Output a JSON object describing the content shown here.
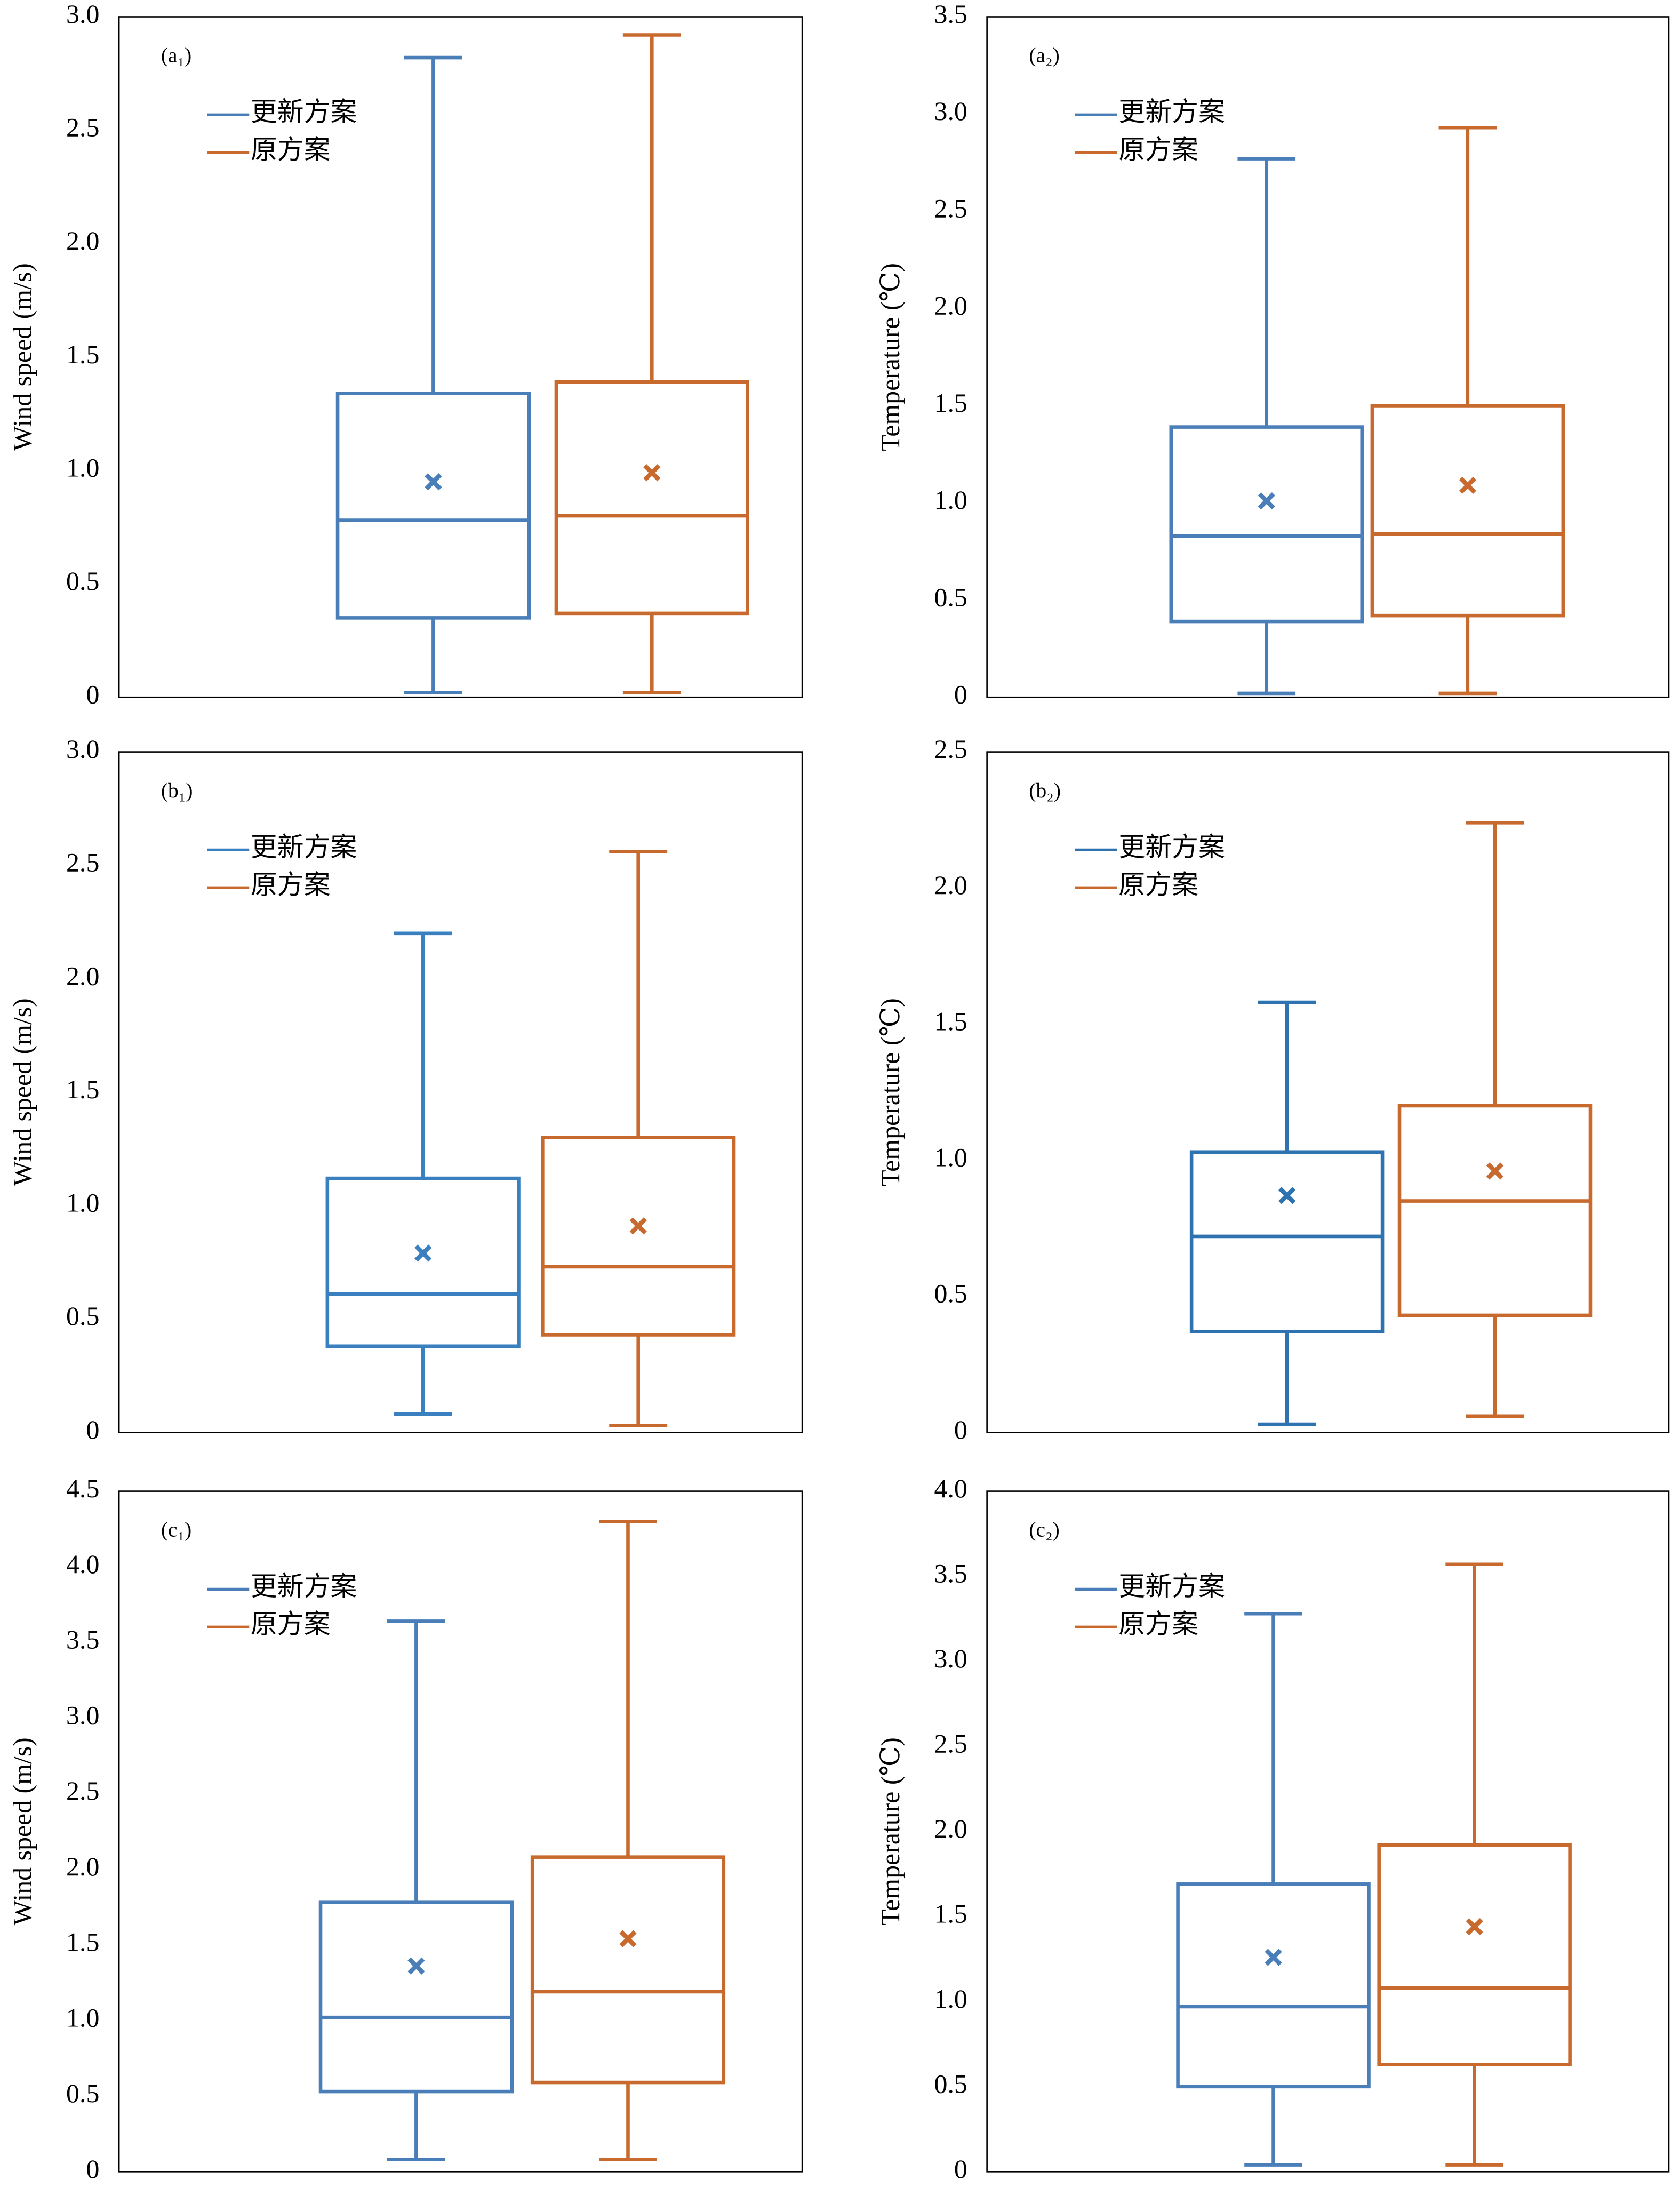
{
  "chart_data": [
    {
      "type": "box",
      "label": "(a₁)",
      "ylabel": "Wind speed (m/s)",
      "ylim": [
        0,
        3
      ],
      "yticks": [
        0,
        0.5,
        {
          "value": 1,
          "label": "1.0"
        },
        1.5,
        {
          "value": 2,
          "label": "2.0"
        },
        2.5,
        {
          "value": 3,
          "label": "3.0"
        }
      ],
      "series": [
        {
          "name": "更新方案",
          "color": "#4a7eb8",
          "min": 0.02,
          "q1": 0.35,
          "median": 0.78,
          "q3": 1.34,
          "max": 2.82,
          "mean": 0.95
        },
        {
          "name": "原方案",
          "color": "#c8692e",
          "min": 0.02,
          "q1": 0.37,
          "median": 0.8,
          "q3": 1.39,
          "max": 2.92,
          "mean": 0.99
        }
      ]
    },
    {
      "type": "box",
      "label": "(a₂)",
      "ylabel": "Temperature (℃)",
      "ylim": [
        0,
        3.5
      ],
      "yticks": [
        0,
        0.5,
        {
          "value": 1,
          "label": "1.0"
        },
        1.5,
        {
          "value": 2,
          "label": "2.0"
        },
        2.5,
        {
          "value": 3,
          "label": "3.0"
        },
        3.5
      ],
      "series": [
        {
          "name": "更新方案",
          "color": "#4a7eb8",
          "min": 0.02,
          "q1": 0.39,
          "median": 0.83,
          "q3": 1.39,
          "max": 2.77,
          "mean": 1.01
        },
        {
          "name": "原方案",
          "color": "#c8692e",
          "min": 0.02,
          "q1": 0.42,
          "median": 0.84,
          "q3": 1.5,
          "max": 2.93,
          "mean": 1.09
        }
      ]
    },
    {
      "type": "box",
      "label": "(b₁)",
      "ylabel": "Wind speed (m/s)",
      "ylim": [
        0,
        3
      ],
      "yticks": [
        0,
        0.5,
        {
          "value": 1,
          "label": "1.0"
        },
        1.5,
        {
          "value": 2,
          "label": "2.0"
        },
        2.5,
        {
          "value": 3,
          "label": "3.0"
        }
      ],
      "series": [
        {
          "name": "更新方案",
          "color": "#3a80c0",
          "min": 0.08,
          "q1": 0.38,
          "median": 0.61,
          "q3": 1.12,
          "max": 2.2,
          "mean": 0.79
        },
        {
          "name": "原方案",
          "color": "#c8692e",
          "min": 0.03,
          "q1": 0.43,
          "median": 0.73,
          "q3": 1.3,
          "max": 2.56,
          "mean": 0.91
        }
      ]
    },
    {
      "type": "box",
      "label": "(b₂)",
      "ylabel": "Temperature (℃)",
      "ylim": [
        0,
        2.5
      ],
      "yticks": [
        0,
        0.5,
        {
          "value": 1,
          "label": "1.0"
        },
        1.5,
        {
          "value": 2,
          "label": "2.0"
        },
        2.5
      ],
      "series": [
        {
          "name": "更新方案",
          "color": "#2f72b0",
          "min": 0.03,
          "q1": 0.37,
          "median": 0.72,
          "q3": 1.03,
          "max": 1.58,
          "mean": 0.87
        },
        {
          "name": "原方案",
          "color": "#c8692e",
          "min": 0.06,
          "q1": 0.43,
          "median": 0.85,
          "q3": 1.2,
          "max": 2.24,
          "mean": 0.96
        }
      ]
    },
    {
      "type": "box",
      "label": "(c₁)",
      "ylabel": "Wind speed (m/s)",
      "ylim": [
        0,
        4.5
      ],
      "yticks": [
        0,
        0.5,
        {
          "value": 1,
          "label": "1.0"
        },
        1.5,
        {
          "value": 2,
          "label": "2.0"
        },
        2.5,
        {
          "value": 3,
          "label": "3.0"
        },
        3.5,
        {
          "value": 4,
          "label": "4.0"
        },
        4.5
      ],
      "series": [
        {
          "name": "更新方案",
          "color": "#4a7eb8",
          "min": 0.08,
          "q1": 0.53,
          "median": 1.02,
          "q3": 1.78,
          "max": 3.64,
          "mean": 1.36
        },
        {
          "name": "原方案",
          "color": "#c8692e",
          "min": 0.08,
          "q1": 0.59,
          "median": 1.19,
          "q3": 2.08,
          "max": 4.3,
          "mean": 1.54
        }
      ]
    },
    {
      "type": "box",
      "label": "(c₂)",
      "ylabel": "Temperature (℃)",
      "ylim": [
        0,
        4
      ],
      "yticks": [
        0,
        0.5,
        {
          "value": 1,
          "label": "1.0"
        },
        1.5,
        {
          "value": 2,
          "label": "2.0"
        },
        2.5,
        {
          "value": 3,
          "label": "3.0"
        },
        3.5,
        {
          "value": 4,
          "label": "4.0"
        }
      ],
      "series": [
        {
          "name": "更新方案",
          "color": "#4a7eb8",
          "min": 0.04,
          "q1": 0.5,
          "median": 0.97,
          "q3": 1.69,
          "max": 3.28,
          "mean": 1.26
        },
        {
          "name": "原方案",
          "color": "#c8692e",
          "min": 0.04,
          "q1": 0.63,
          "median": 1.08,
          "q3": 1.92,
          "max": 3.57,
          "mean": 1.44
        }
      ]
    }
  ]
}
